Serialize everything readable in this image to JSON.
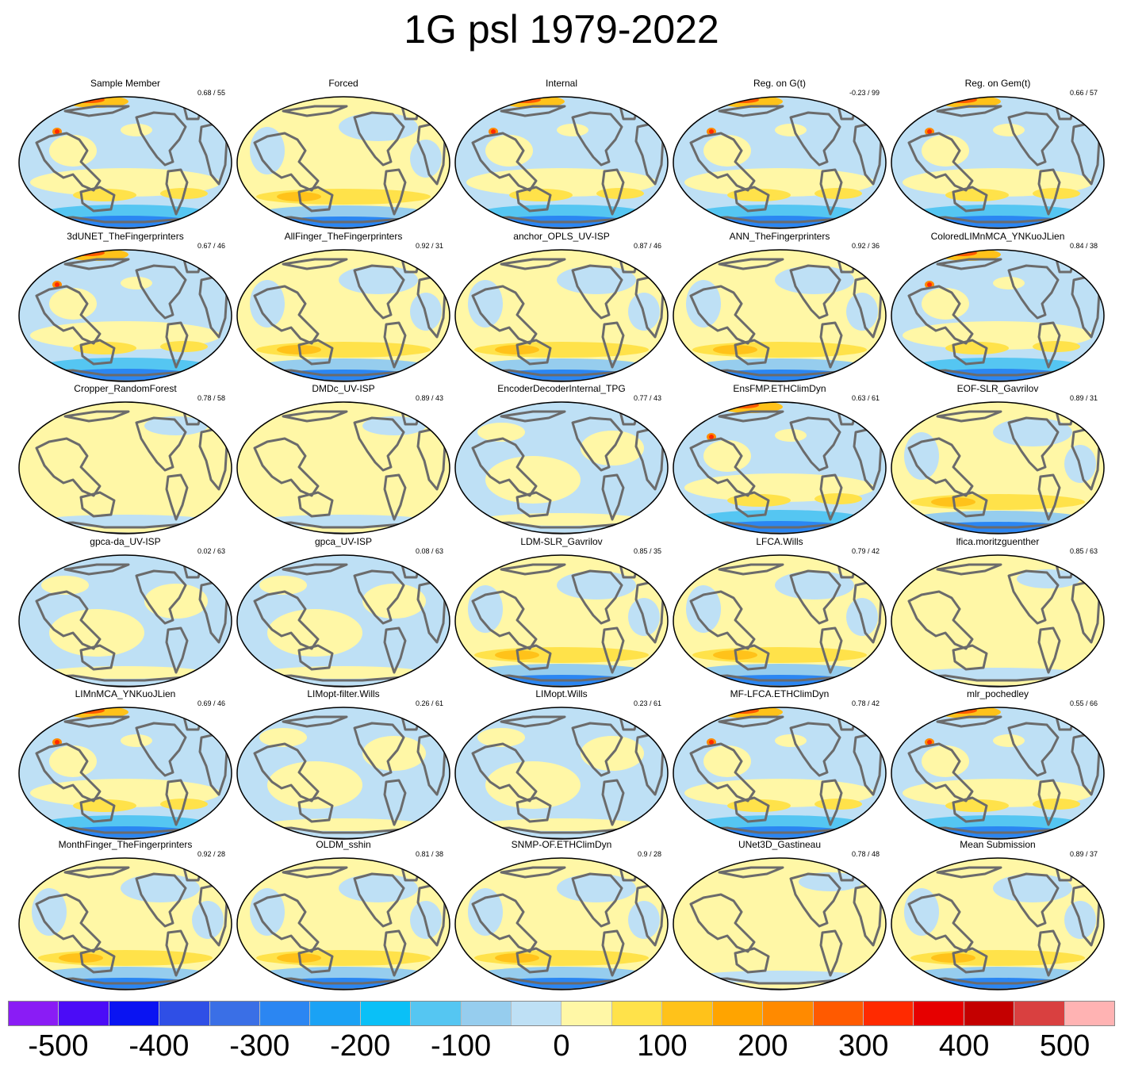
{
  "title": "1G psl 1979-2022",
  "panels": [
    {
      "title": "Sample Member",
      "stat": "0.68 / 55",
      "pattern": "A"
    },
    {
      "title": "Forced",
      "stat": "",
      "pattern": "B"
    },
    {
      "title": "Internal",
      "stat": "",
      "pattern": "A"
    },
    {
      "title": "Reg. on G(t)",
      "stat": "-0.23 / 99",
      "pattern": "A"
    },
    {
      "title": "Reg. on Gem(t)",
      "stat": "0.66 / 57",
      "pattern": "A"
    },
    {
      "title": "3dUNET_TheFingerprinters",
      "stat": "0.67 / 46",
      "pattern": "A"
    },
    {
      "title": "AllFinger_TheFingerprinters",
      "stat": "0.92 / 31",
      "pattern": "B"
    },
    {
      "title": "anchor_OPLS_UV-ISP",
      "stat": "0.87 / 46",
      "pattern": "B"
    },
    {
      "title": "ANN_TheFingerprinters",
      "stat": "0.92 / 36",
      "pattern": "B"
    },
    {
      "title": "ColoredLIMnMCA_YNKuoJLien",
      "stat": "0.84 / 38",
      "pattern": "A"
    },
    {
      "title": "Cropper_RandomForest",
      "stat": "0.78 / 58",
      "pattern": "C"
    },
    {
      "title": "DMDc_UV-ISP",
      "stat": "0.89 / 43",
      "pattern": "C"
    },
    {
      "title": "EncoderDecoderInternal_TPG",
      "stat": "0.77 / 43",
      "pattern": "D"
    },
    {
      "title": "EnsFMP.ETHClimDyn",
      "stat": "0.63 / 61",
      "pattern": "A"
    },
    {
      "title": "EOF-SLR_Gavrilov",
      "stat": "0.89 / 31",
      "pattern": "B"
    },
    {
      "title": "gpca-da_UV-ISP",
      "stat": "0.02 / 63",
      "pattern": "D"
    },
    {
      "title": "gpca_UV-ISP",
      "stat": "0.08 / 63",
      "pattern": "D"
    },
    {
      "title": "LDM-SLR_Gavrilov",
      "stat": "0.85 / 35",
      "pattern": "B"
    },
    {
      "title": "LFCA.Wills",
      "stat": "0.79 / 42",
      "pattern": "B"
    },
    {
      "title": "lfica.moritzguenther",
      "stat": "0.85 / 63",
      "pattern": "C"
    },
    {
      "title": "LIMnMCA_YNKuoJLien",
      "stat": "0.69 / 46",
      "pattern": "A"
    },
    {
      "title": "LIMopt-filter.Wills",
      "stat": "0.26 / 61",
      "pattern": "D"
    },
    {
      "title": "LIMopt.Wills",
      "stat": "0.23 / 61",
      "pattern": "D"
    },
    {
      "title": "MF-LFCA.ETHClimDyn",
      "stat": "0.78 / 42",
      "pattern": "A"
    },
    {
      "title": "mlr_pochedley",
      "stat": "0.55 / 66",
      "pattern": "A"
    },
    {
      "title": "MonthFinger_TheFingerprinters",
      "stat": "0.92 / 28",
      "pattern": "B"
    },
    {
      "title": "OLDM_sshin",
      "stat": "0.81 / 38",
      "pattern": "B"
    },
    {
      "title": "SNMP-OF.ETHClimDyn",
      "stat": "0.9 / 28",
      "pattern": "B"
    },
    {
      "title": "UNet3D_Gastineau",
      "stat": "0.78 / 48",
      "pattern": "C"
    },
    {
      "title": "Mean Submission",
      "stat": "0.89 / 37",
      "pattern": "B"
    }
  ],
  "colorbar": {
    "colors": [
      "#8a1cf5",
      "#4b0cf7",
      "#0a14f2",
      "#2f4fe6",
      "#3a6fe6",
      "#2b86f2",
      "#1aa2f5",
      "#0ac0f7",
      "#55c6f2",
      "#96cdee",
      "#bee0f5",
      "#fff7a6",
      "#ffe24a",
      "#ffc21a",
      "#ffa400",
      "#ff8a00",
      "#ff5a00",
      "#ff2a00",
      "#e60000",
      "#c40000",
      "#d94040",
      "#ffb3b3"
    ],
    "ticks": [
      "-500",
      "-400",
      "-300",
      "-200",
      "-100",
      "0",
      "100",
      "200",
      "300",
      "400",
      "500"
    ]
  }
}
